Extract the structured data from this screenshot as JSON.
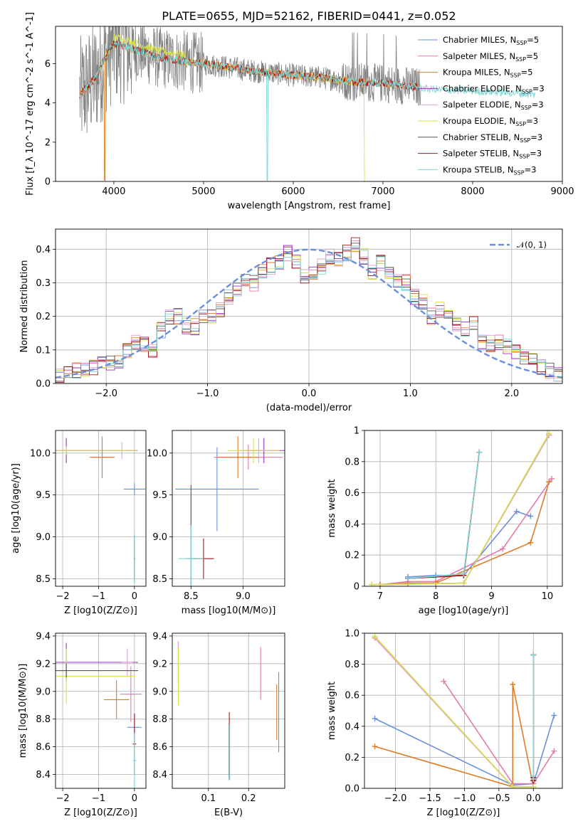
{
  "title": "PLATE=0655, MJD=52162, FIBERID=0441, z=0.052",
  "colors": {
    "chabrier_miles": "#6a8fdc",
    "salpeter_miles": "#e47ab0",
    "kroupa_miles": "#df7a25",
    "chabrier_elodie": "#9b2fc4",
    "salpeter_elodie": "#e3a0d4",
    "kroupa_elodie": "#d6e04a",
    "chabrier_stelib": "#555555",
    "salpeter_stelib": "#a11818",
    "kroupa_stelib": "#7fd6d6",
    "data": "#808080",
    "gauss": "#6a8fdc"
  },
  "chart_data": [
    {
      "id": "spectrum",
      "type": "line",
      "xlabel": "wavelength [Angstrom, rest frame]",
      "ylabel": "Flux [f_λ 10^-17 erg cm^-2 s^-1 A^-1]",
      "xlim": [
        3350,
        9000
      ],
      "ylim": [
        0,
        7.9
      ],
      "xticks": [
        4000,
        5000,
        6000,
        7000,
        8000,
        9000
      ],
      "yticks": [
        0,
        2,
        4,
        6
      ],
      "legend_position": "top-right",
      "legend": [
        {
          "label": "Chabrier MILES, N",
          "sub": "SSP",
          "suffix": "=5",
          "color_key": "chabrier_miles"
        },
        {
          "label": "Salpeter MILES, N",
          "sub": "SSP",
          "suffix": "=5",
          "color_key": "salpeter_miles"
        },
        {
          "label": "Kroupa MILES, N",
          "sub": "SSP",
          "suffix": "=5",
          "color_key": "kroupa_miles"
        },
        {
          "label": "Chabrier ELODIE, N",
          "sub": "SSP",
          "suffix": "=3",
          "color_key": "chabrier_elodie"
        },
        {
          "label": "Salpeter ELODIE, N",
          "sub": "SSP",
          "suffix": "=3",
          "color_key": "salpeter_elodie"
        },
        {
          "label": "Kroupa ELODIE, N",
          "sub": "SSP",
          "suffix": "=3",
          "color_key": "kroupa_elodie"
        },
        {
          "label": "Chabrier STELIB, N",
          "sub": "SSP",
          "suffix": "=3",
          "color_key": "chabrier_stelib"
        },
        {
          "label": "Salpeter STELIB, N",
          "sub": "SSP",
          "suffix": "=3",
          "color_key": "salpeter_stelib"
        },
        {
          "label": "Kroupa STELIB, N",
          "sub": "SSP",
          "suffix": "=3",
          "color_key": "kroupa_stelib"
        }
      ],
      "continuum": {
        "x": [
          3620,
          3700,
          3800,
          3900,
          4000,
          4100,
          4300,
          4500,
          4800,
          5000,
          5300,
          5600,
          6000,
          6300,
          6600,
          7000,
          7400,
          7500,
          8000,
          8500,
          8700
        ],
        "y": [
          4.4,
          4.8,
          5.3,
          6.3,
          7.0,
          6.9,
          6.6,
          6.3,
          6.1,
          6.0,
          5.8,
          5.6,
          5.4,
          5.3,
          5.1,
          5.0,
          4.8,
          4.7,
          4.6,
          4.5,
          4.4
        ]
      }
    },
    {
      "id": "residuals",
      "type": "line",
      "xlabel": "(data-model)/error",
      "ylabel": "Normed distribution",
      "xlim": [
        -2.5,
        2.5
      ],
      "ylim": [
        0,
        0.46
      ],
      "xticks": [
        -2,
        -1,
        0,
        1,
        2
      ],
      "yticks": [
        0.0,
        0.1,
        0.2,
        0.3,
        0.4
      ],
      "legend_position": "top-right",
      "gauss_label": "𝒩(0, 1)",
      "mean_hist": [
        0.02,
        0.04,
        0.04,
        0.04,
        0.05,
        0.07,
        0.06,
        0.06,
        0.1,
        0.12,
        0.12,
        0.1,
        0.16,
        0.2,
        0.2,
        0.17,
        0.17,
        0.2,
        0.2,
        0.22,
        0.26,
        0.28,
        0.3,
        0.3,
        0.33,
        0.35,
        0.36,
        0.39,
        0.36,
        0.32,
        0.33,
        0.35,
        0.38,
        0.37,
        0.39,
        0.41,
        0.38,
        0.33,
        0.36,
        0.33,
        0.3,
        0.3,
        0.26,
        0.24,
        0.2,
        0.22,
        0.2,
        0.18,
        0.16,
        0.18,
        0.12,
        0.12,
        0.12,
        0.11,
        0.09,
        0.08,
        0.07,
        0.05,
        0.04,
        0.03
      ]
    },
    {
      "id": "age_vs_Z",
      "type": "scatter",
      "xlabel": "Z [log10(Z/Z⊙)]",
      "ylabel": "age  [log10(age/yr)]",
      "xlim": [
        -2.2,
        0.32
      ],
      "ylim": [
        8.41,
        10.27
      ],
      "xticks": [
        -2,
        -1,
        0
      ],
      "yticks": [
        8.5,
        9.0,
        9.5,
        10.0
      ],
      "points": [
        {
          "key": "chabrier_miles",
          "x": 0.0,
          "xerr": 0.3,
          "y": 9.57,
          "yerr": 0.07
        },
        {
          "key": "salpeter_miles",
          "x": -0.9,
          "xerr": 0.3,
          "y": 9.95,
          "yerr": 0.12
        },
        {
          "key": "kroupa_miles",
          "x": -0.9,
          "xerr": 0.35,
          "y": 9.95,
          "yerr": 0.25
        },
        {
          "key": "chabrier_elodie",
          "x": -1.9,
          "xerr": 2.0,
          "y": 10.03,
          "yerr": 0.15
        },
        {
          "key": "salpeter_elodie",
          "x": -0.35,
          "xerr": 0.15,
          "y": 10.03,
          "yerr": 0.1
        },
        {
          "key": "kroupa_elodie",
          "x": -1.9,
          "xerr": 2.0,
          "y": 10.03,
          "yerr": 0.05
        },
        {
          "key": "chabrier_stelib",
          "x": 0.0,
          "xerr": 0.02,
          "y": 8.74,
          "yerr": 0.28
        },
        {
          "key": "salpeter_stelib",
          "x": 0.0,
          "xerr": 0.02,
          "y": 8.74,
          "yerr": 0.22
        },
        {
          "key": "kroupa_stelib",
          "x": 0.0,
          "xerr": 0.03,
          "y": 8.74,
          "yerr": 0.3
        }
      ]
    },
    {
      "id": "age_vs_mass",
      "type": "scatter",
      "xlabel": "mass [log10(M/M⊙)]",
      "ylabel": "",
      "xlim": [
        8.32,
        9.4
      ],
      "ylim": [
        8.41,
        10.27
      ],
      "xticks": [
        8.5,
        9.0
      ],
      "yticks": [
        8.5,
        9.0,
        9.5,
        10.0
      ],
      "points": [
        {
          "key": "chabrier_miles",
          "x": 8.75,
          "xerr": 0.4,
          "y": 9.57,
          "yerr": 0.5
        },
        {
          "key": "salpeter_miles",
          "x": 9.05,
          "xerr": 0.33,
          "y": 9.95,
          "yerr": 0.15
        },
        {
          "key": "kroupa_miles",
          "x": 8.95,
          "xerr": 0.2,
          "y": 9.95,
          "yerr": 0.25
        },
        {
          "key": "chabrier_elodie",
          "x": 9.2,
          "xerr": 0.2,
          "y": 10.03,
          "yerr": 0.15
        },
        {
          "key": "salpeter_elodie",
          "x": 9.15,
          "xerr": 0.2,
          "y": 10.03,
          "yerr": 0.15
        },
        {
          "key": "kroupa_elodie",
          "x": 9.1,
          "xerr": 0.25,
          "y": 10.03,
          "yerr": 0.15
        },
        {
          "key": "chabrier_stelib",
          "x": 8.5,
          "xerr": 0.05,
          "y": 8.74,
          "yerr": 0.88
        },
        {
          "key": "salpeter_stelib",
          "x": 8.62,
          "xerr": 0.1,
          "y": 8.74,
          "yerr": 0.24
        },
        {
          "key": "kroupa_stelib",
          "x": 8.5,
          "xerr": 0.12,
          "y": 8.74,
          "yerr": 0.4
        }
      ]
    },
    {
      "id": "mw_vs_age",
      "type": "line",
      "xlabel": "age  [log10(age/yr)]",
      "ylabel": "mass weight",
      "xlim": [
        6.72,
        10.27
      ],
      "ylim": [
        0,
        1.0
      ],
      "xticks": [
        7,
        8,
        9,
        10
      ],
      "yticks": [
        0.0,
        0.2,
        0.4,
        0.6,
        0.8,
        1.0
      ],
      "series": [
        {
          "key": "chabrier_miles",
          "x": [
            7.5,
            8.0,
            8.5,
            9.45,
            9.7
          ],
          "y": [
            0.06,
            0.07,
            0.07,
            0.48,
            0.45
          ]
        },
        {
          "key": "salpeter_miles",
          "x": [
            7.0,
            7.5,
            8.0,
            9.2,
            10.08
          ],
          "y": [
            0.01,
            0.03,
            0.03,
            0.24,
            0.69
          ]
        },
        {
          "key": "kroupa_miles",
          "x": [
            7.0,
            7.5,
            8.0,
            9.7,
            10.03
          ],
          "y": [
            0.01,
            0.02,
            0.02,
            0.28,
            0.67
          ]
        },
        {
          "key": "chabrier_elodie",
          "x": [
            6.85,
            8.5,
            10.03
          ],
          "y": [
            0.01,
            0.02,
            0.97
          ]
        },
        {
          "key": "salpeter_elodie",
          "x": [
            6.85,
            8.5,
            10.03
          ],
          "y": [
            0.01,
            0.02,
            0.97
          ]
        },
        {
          "key": "kroupa_elodie",
          "x": [
            6.85,
            8.5,
            10.03
          ],
          "y": [
            0.01,
            0.02,
            0.98
          ]
        },
        {
          "key": "chabrier_stelib",
          "x": [
            7.5,
            8.5,
            8.78
          ],
          "y": [
            0.05,
            0.07,
            0.86
          ]
        },
        {
          "key": "salpeter_stelib",
          "x": [
            7.5,
            8.5,
            8.78
          ],
          "y": [
            0.05,
            0.07,
            0.86
          ]
        },
        {
          "key": "kroupa_stelib",
          "x": [
            7.5,
            8.5,
            8.78
          ],
          "y": [
            0.05,
            0.08,
            0.86
          ]
        }
      ]
    },
    {
      "id": "mass_vs_Z",
      "type": "scatter",
      "xlabel": "Z [log10(Z/Z⊙)]",
      "ylabel": "mass [log10(M/M⊙)]",
      "xlim": [
        -2.2,
        0.32
      ],
      "ylim": [
        8.3,
        9.42
      ],
      "xticks": [
        -2,
        -1,
        0
      ],
      "yticks": [
        8.4,
        8.6,
        8.8,
        9.0,
        9.2,
        9.4
      ],
      "points": [
        {
          "key": "chabrier_miles",
          "x": 0.0,
          "xerr": 0.2,
          "y": 8.74,
          "yerr": 0.1
        },
        {
          "key": "salpeter_miles",
          "x": -0.1,
          "xerr": 0.3,
          "y": 8.98,
          "yerr": 0.2
        },
        {
          "key": "kroupa_miles",
          "x": -0.5,
          "xerr": 0.35,
          "y": 8.94,
          "yerr": 0.14
        },
        {
          "key": "chabrier_elodie",
          "x": -1.9,
          "xerr": 2.0,
          "y": 9.21,
          "yerr": 0.14
        },
        {
          "key": "salpeter_elodie",
          "x": -0.2,
          "xerr": 0.15,
          "y": 9.21,
          "yerr": 0.1
        },
        {
          "key": "kroupa_elodie",
          "x": -1.9,
          "xerr": 1.9,
          "y": 9.11,
          "yerr": 0.2
        },
        {
          "key": "chabrier_stelib",
          "x": -1.9,
          "xerr": 2.0,
          "y": 9.15,
          "yerr": 0.05
        },
        {
          "key": "salpeter_stelib",
          "x": 0.0,
          "xerr": 0.05,
          "y": 8.62,
          "yerr": 0.22
        },
        {
          "key": "kroupa_stelib",
          "x": 0.0,
          "xerr": 0.05,
          "y": 8.5,
          "yerr": 0.2
        }
      ]
    },
    {
      "id": "mass_vs_ebv",
      "type": "scatter",
      "xlabel": "E(B-V)",
      "ylabel": "",
      "xlim": [
        0.01,
        0.29
      ],
      "ylim": [
        8.3,
        9.42
      ],
      "xticks": [
        0.1,
        0.2
      ],
      "yticks": [
        8.4,
        8.6,
        8.8,
        9.0,
        9.2,
        9.4
      ],
      "points": [
        {
          "key": "chabrier_miles",
          "x": 0.275,
          "xerr": 0.0,
          "y": 8.85,
          "yerr": 0.29
        },
        {
          "key": "salpeter_miles",
          "x": 0.23,
          "xerr": 0.0,
          "y": 9.13,
          "yerr": 0.19
        },
        {
          "key": "kroupa_miles",
          "x": 0.27,
          "xerr": 0.0,
          "y": 8.85,
          "yerr": 0.2
        },
        {
          "key": "chabrier_elodie",
          "x": 0.025,
          "xerr": 0.0,
          "y": 9.21,
          "yerr": 0.15
        },
        {
          "key": "salpeter_elodie",
          "x": 0.025,
          "xerr": 0.0,
          "y": 9.21,
          "yerr": 0.15
        },
        {
          "key": "kroupa_elodie",
          "x": 0.025,
          "xerr": 0.0,
          "y": 9.11,
          "yerr": 0.21
        },
        {
          "key": "chabrier_stelib",
          "x": 0.152,
          "xerr": 0.0,
          "y": 8.55,
          "yerr": 0.19
        },
        {
          "key": "salpeter_stelib",
          "x": 0.152,
          "xerr": 0.0,
          "y": 8.62,
          "yerr": 0.23
        },
        {
          "key": "kroupa_stelib",
          "x": 0.153,
          "xerr": 0.0,
          "y": 8.56,
          "yerr": 0.2
        }
      ]
    },
    {
      "id": "mw_vs_Z",
      "type": "line",
      "xlabel": "Z [log10(Z/Z⊙)]",
      "ylabel": "mass weight",
      "xlim": [
        -2.45,
        0.42
      ],
      "ylim": [
        0,
        1.0
      ],
      "xticks": [
        -2.0,
        -1.5,
        -1.0,
        -0.5,
        0.0
      ],
      "yticks": [
        0.0,
        0.2,
        0.4,
        0.6,
        0.8,
        1.0
      ],
      "series": [
        {
          "key": "chabrier_miles",
          "x": [
            -2.3,
            -0.3,
            0.0,
            0.3
          ],
          "y": [
            0.45,
            0.02,
            0.03,
            0.47
          ]
        },
        {
          "key": "salpeter_miles",
          "x": [
            -1.3,
            -0.3,
            0.0,
            0.3
          ],
          "y": [
            0.69,
            0.03,
            0.03,
            0.24
          ]
        },
        {
          "key": "kroupa_miles",
          "x": [
            -2.3,
            -0.3,
            -0.3,
            0.0
          ],
          "y": [
            0.27,
            0.01,
            0.67,
            0.01
          ]
        },
        {
          "key": "chabrier_elodie",
          "x": [
            -2.3,
            -0.3,
            0.0
          ],
          "y": [
            0.97,
            0.01,
            0.01
          ]
        },
        {
          "key": "salpeter_elodie",
          "x": [
            -2.3,
            -0.3,
            0.0
          ],
          "y": [
            0.97,
            0.01,
            0.01
          ]
        },
        {
          "key": "kroupa_elodie",
          "x": [
            -2.3,
            -0.3,
            0.0
          ],
          "y": [
            0.98,
            0.01,
            0.01
          ]
        },
        {
          "key": "chabrier_stelib",
          "x": [
            0.0,
            0.0,
            0.0
          ],
          "y": [
            0.07,
            0.86,
            0.05
          ]
        },
        {
          "key": "salpeter_stelib",
          "x": [
            0.0,
            0.0,
            0.0
          ],
          "y": [
            0.07,
            0.86,
            0.05
          ]
        },
        {
          "key": "kroupa_stelib",
          "x": [
            0.0,
            0.0,
            0.0
          ],
          "y": [
            0.08,
            0.86,
            0.06
          ]
        }
      ]
    }
  ]
}
